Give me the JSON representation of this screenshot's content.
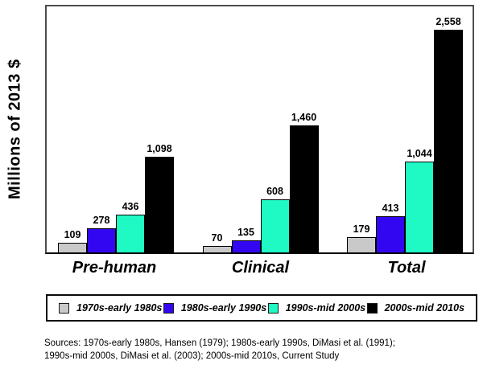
{
  "chart_data": {
    "type": "bar",
    "title": "",
    "ylabel": "Millions of 2013 $",
    "xlabel": "",
    "categories": [
      "Pre-human",
      "Clinical",
      "Total"
    ],
    "series": [
      {
        "name": "1970s-early 1980s",
        "color": "#c9c9c9",
        "values": [
          109,
          70,
          179
        ]
      },
      {
        "name": "1980s-early 1990s",
        "color": "#3306f2",
        "values": [
          278,
          135,
          413
        ]
      },
      {
        "name": "1990s-mid 2000s",
        "color": "#1ffac5",
        "values": [
          436,
          608,
          1044
        ]
      },
      {
        "name": "2000s-mid 2010s",
        "color": "#000000",
        "values": [
          1098,
          1460,
          2558
        ]
      }
    ],
    "value_labels": [
      [
        "109",
        "278",
        "436",
        "1,098"
      ],
      [
        "70",
        "135",
        "608",
        "1,460"
      ],
      [
        "179",
        "413",
        "1,044",
        "2,558"
      ]
    ],
    "ylim": [
      0,
      2830
    ],
    "grid": false,
    "legend_position": "bottom"
  },
  "sources": {
    "line1": "Sources: 1970s-early 1980s, Hansen (1979); 1980s-early 1990s, DiMasi et al. (1991);",
    "line2": "1990s-mid 2000s, DiMasi et al. (2003); 2000s-mid 2010s, Current Study"
  }
}
